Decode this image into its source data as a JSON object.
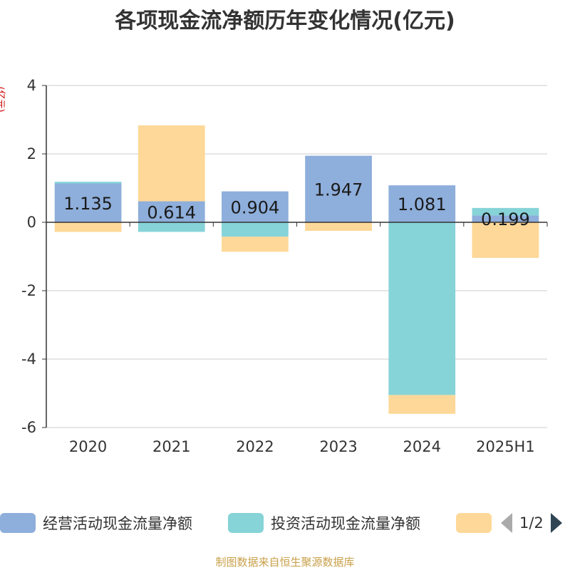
{
  "title": "各项现金流净额历年变化情况(亿元)",
  "unit_label": "(亿元)",
  "source": "制图数据来自恒生聚源数据库",
  "legend": {
    "items": [
      {
        "label": "经营活动现金流量净额",
        "color": "#8eaedb"
      },
      {
        "label": "投资活动现金流量净额",
        "color": "#86d3d8"
      },
      {
        "label": "",
        "color": "#fed898"
      }
    ],
    "page": "1/2"
  },
  "chart_data": {
    "type": "bar",
    "stacked": true,
    "categories": [
      "2020",
      "2021",
      "2022",
      "2023",
      "2024",
      "2025H1"
    ],
    "ylim": [
      -6,
      4
    ],
    "yticks": [
      -6,
      -4,
      -2,
      0,
      2,
      4
    ],
    "grid": true,
    "legend_position": "bottom",
    "series": [
      {
        "name": "经营活动现金流量净额",
        "color": "#8eaedb",
        "values": [
          1.135,
          0.614,
          0.904,
          1.947,
          1.081,
          0.199
        ],
        "labels": [
          "1.135",
          "0.614",
          "0.904",
          "1.947",
          "1.081",
          "0.199"
        ]
      },
      {
        "name": "投资活动现金流量净额",
        "color": "#86d3d8",
        "values": [
          0.05,
          -0.28,
          -0.42,
          0.0,
          -5.05,
          0.22
        ]
      },
      {
        "color": "#fed898",
        "values": [
          -0.28,
          2.22,
          -0.44,
          -0.25,
          -0.55,
          -1.04
        ]
      }
    ]
  }
}
